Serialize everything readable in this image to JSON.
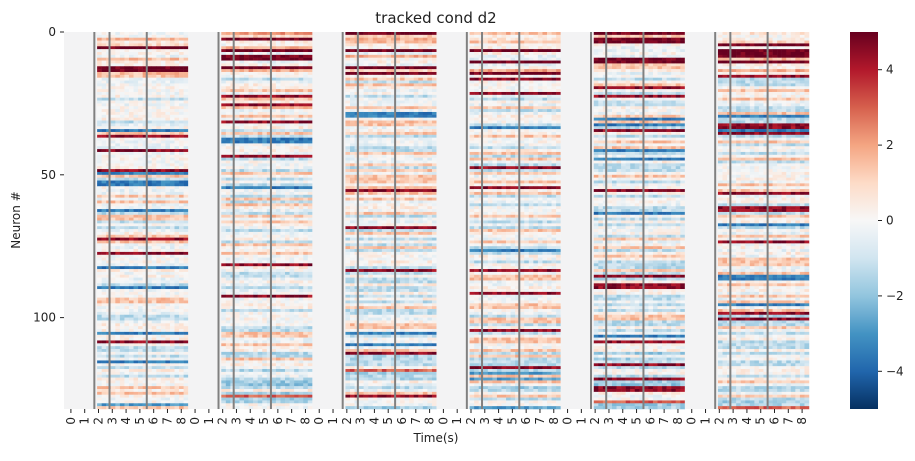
{
  "chart_data": {
    "type": "heatmap",
    "title": "tracked cond d2",
    "xlabel": "Time(s)",
    "ylabel": "Neuron #",
    "n_rows": 132,
    "y_ticks": [
      0,
      50,
      100
    ],
    "y_tick_labels": [
      "0",
      "50",
      "100"
    ],
    "n_trials": 6,
    "trial_time_ticks": [
      0,
      1,
      2,
      3,
      4,
      5,
      6,
      7,
      8
    ],
    "trial_time_tick_labels": [
      "0",
      "1",
      "2",
      "3",
      "4",
      "5",
      "6",
      "7",
      "8"
    ],
    "trial_duration_s": 9,
    "event_lines_s": [
      2.2,
      3.3,
      6.0
    ],
    "colorbar": {
      "vmin": -5,
      "vmax": 5,
      "ticks": [
        4,
        2,
        0,
        -2,
        -4
      ],
      "tick_labels": [
        "4",
        "2",
        "0",
        "−2",
        "−4"
      ],
      "colormap": "RdBu_r"
    },
    "colors": {
      "event_line": "#808080",
      "neg_strong": "#053061",
      "neutral": "#f7f7f7",
      "pos_strong": "#67001f"
    }
  }
}
